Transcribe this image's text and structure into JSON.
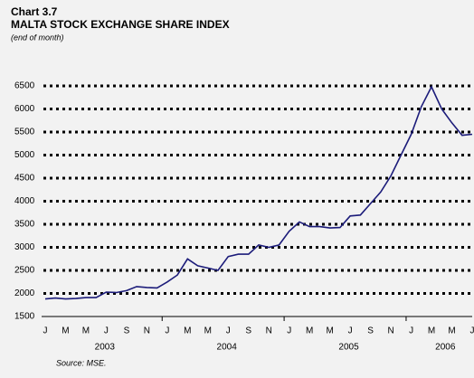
{
  "chart_data": {
    "type": "line",
    "chart_number": "Chart 3.7",
    "title": "MALTA STOCK EXCHANGE SHARE INDEX",
    "subtitle": "(end of month)",
    "source": "Source:  MSE.",
    "categories": [
      "J",
      null,
      "M",
      null,
      "M",
      null,
      "J",
      null,
      "S",
      null,
      "N",
      null,
      "J",
      null,
      "M",
      null,
      "M",
      null,
      "J",
      null,
      "S",
      null,
      "N",
      null,
      "J",
      null,
      "M",
      null,
      "M",
      null,
      "J",
      null,
      "S",
      null,
      "N",
      null,
      "J",
      null,
      "M",
      null,
      "M",
      null,
      "J"
    ],
    "years": [
      "2003",
      "2004",
      "2005",
      "2006"
    ],
    "series": [
      {
        "name": "MSE Share Index",
        "color": "#1c1c7a",
        "values": [
          1880,
          1900,
          1880,
          1890,
          1910,
          1910,
          2030,
          2020,
          2060,
          2150,
          2130,
          2120,
          2250,
          2400,
          2750,
          2600,
          2550,
          2500,
          2800,
          2850,
          2850,
          3050,
          3000,
          3050,
          3350,
          3550,
          3450,
          3450,
          3420,
          3430,
          3680,
          3700,
          3950,
          4200,
          4550,
          5000,
          5450,
          6050,
          6480,
          6000,
          5700,
          5430,
          5450
        ]
      }
    ],
    "ylim": [
      1500,
      6500
    ],
    "yticks": [
      1500,
      2000,
      2500,
      3000,
      3500,
      4000,
      4500,
      5000,
      5500,
      6000,
      6500
    ],
    "grid": true
  }
}
